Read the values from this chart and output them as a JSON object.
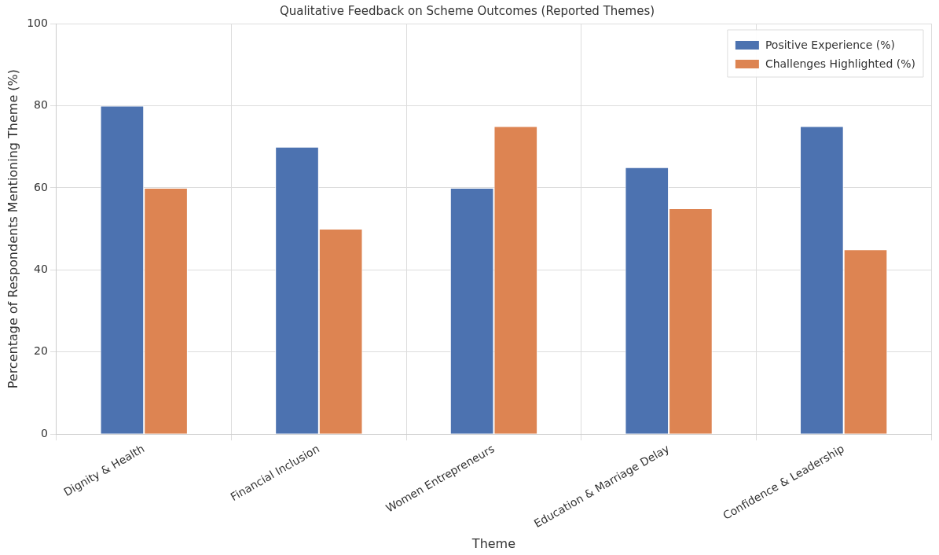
{
  "chart_data": {
    "type": "bar",
    "title": "Qualitative Feedback on Scheme Outcomes (Reported Themes)",
    "xlabel": "Theme",
    "ylabel": "Percentage of Respondents Mentioning Theme (%)",
    "categories": [
      "Dignity & Health",
      "Financial Inclusion",
      "Women Entrepreneurs",
      "Education & Marriage Delay",
      "Confidence & Leadership"
    ],
    "series": [
      {
        "name": "Positive Experience (%)",
        "color": "#4c72b0",
        "values": [
          80,
          70,
          60,
          65,
          75
        ]
      },
      {
        "name": "Challenges Highlighted (%)",
        "color": "#dd8452",
        "values": [
          60,
          50,
          75,
          55,
          45
        ]
      }
    ],
    "ylim": [
      0,
      100
    ],
    "yticks": [
      0,
      20,
      40,
      60,
      80,
      100
    ],
    "grid": true,
    "legend": "top right"
  }
}
